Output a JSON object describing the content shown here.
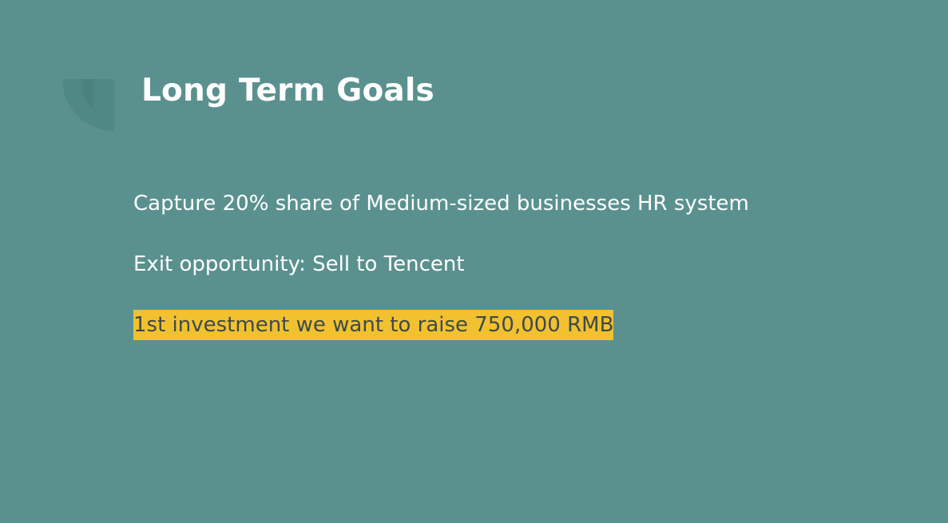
{
  "slide": {
    "title": "Long Term Goals",
    "background_color": "#5a918f",
    "highlight_color": "#f2c130",
    "decoration": "quarter-circle-corner-icon",
    "bullets": [
      {
        "text": "Capture 20% share of Medium-sized businesses HR system"
      },
      {
        "text": "Exit opportunity: Sell to Tencent"
      },
      {
        "text": "1st investment we want to raise 750,000 RMB"
      }
    ]
  }
}
